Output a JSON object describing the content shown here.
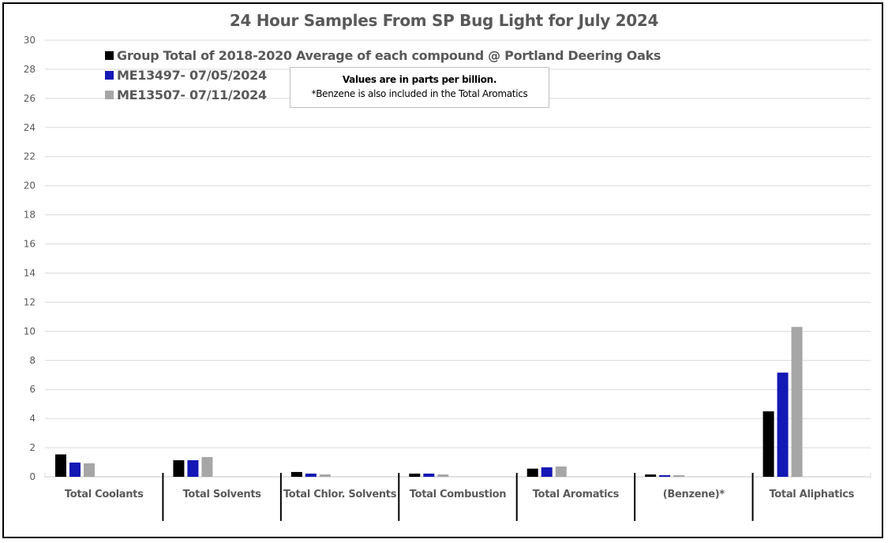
{
  "chart_data": {
    "type": "bar",
    "title": "24 Hour Samples From SP Bug Light for July 2024",
    "categories": [
      "Total Coolants",
      "Total Solvents",
      "Total Chlor. Solvents",
      "Total Combustion",
      "Total Aromatics",
      "(Benzene)*",
      "Total Aliphatics"
    ],
    "series": [
      {
        "name": "Group Total of 2018-2020 Average of each compound @ Portland Deering Oaks",
        "color": "#000000",
        "values": [
          1.54,
          1.14,
          0.33,
          0.22,
          0.56,
          0.16,
          4.5
        ]
      },
      {
        "name": "ME13497- 07/05/2024",
        "color": "#1418B4",
        "values": [
          0.98,
          1.14,
          0.22,
          0.22,
          0.65,
          0.11,
          7.16
        ]
      },
      {
        "name": "ME13507- 07/11/2024",
        "color": "#A6A6A6",
        "values": [
          0.93,
          1.36,
          0.16,
          0.16,
          0.71,
          0.11,
          10.3
        ]
      }
    ],
    "ylim": [
      0,
      30
    ],
    "yticks": [
      0,
      2,
      4,
      6,
      8,
      10,
      12,
      14,
      16,
      18,
      20,
      22,
      24,
      26,
      28,
      30
    ],
    "grid": true,
    "legend_position": "top-left",
    "annotation": {
      "line1": "Values are in parts per billion.",
      "line2": "*Benzene is also included in the Total Aromatics"
    }
  }
}
